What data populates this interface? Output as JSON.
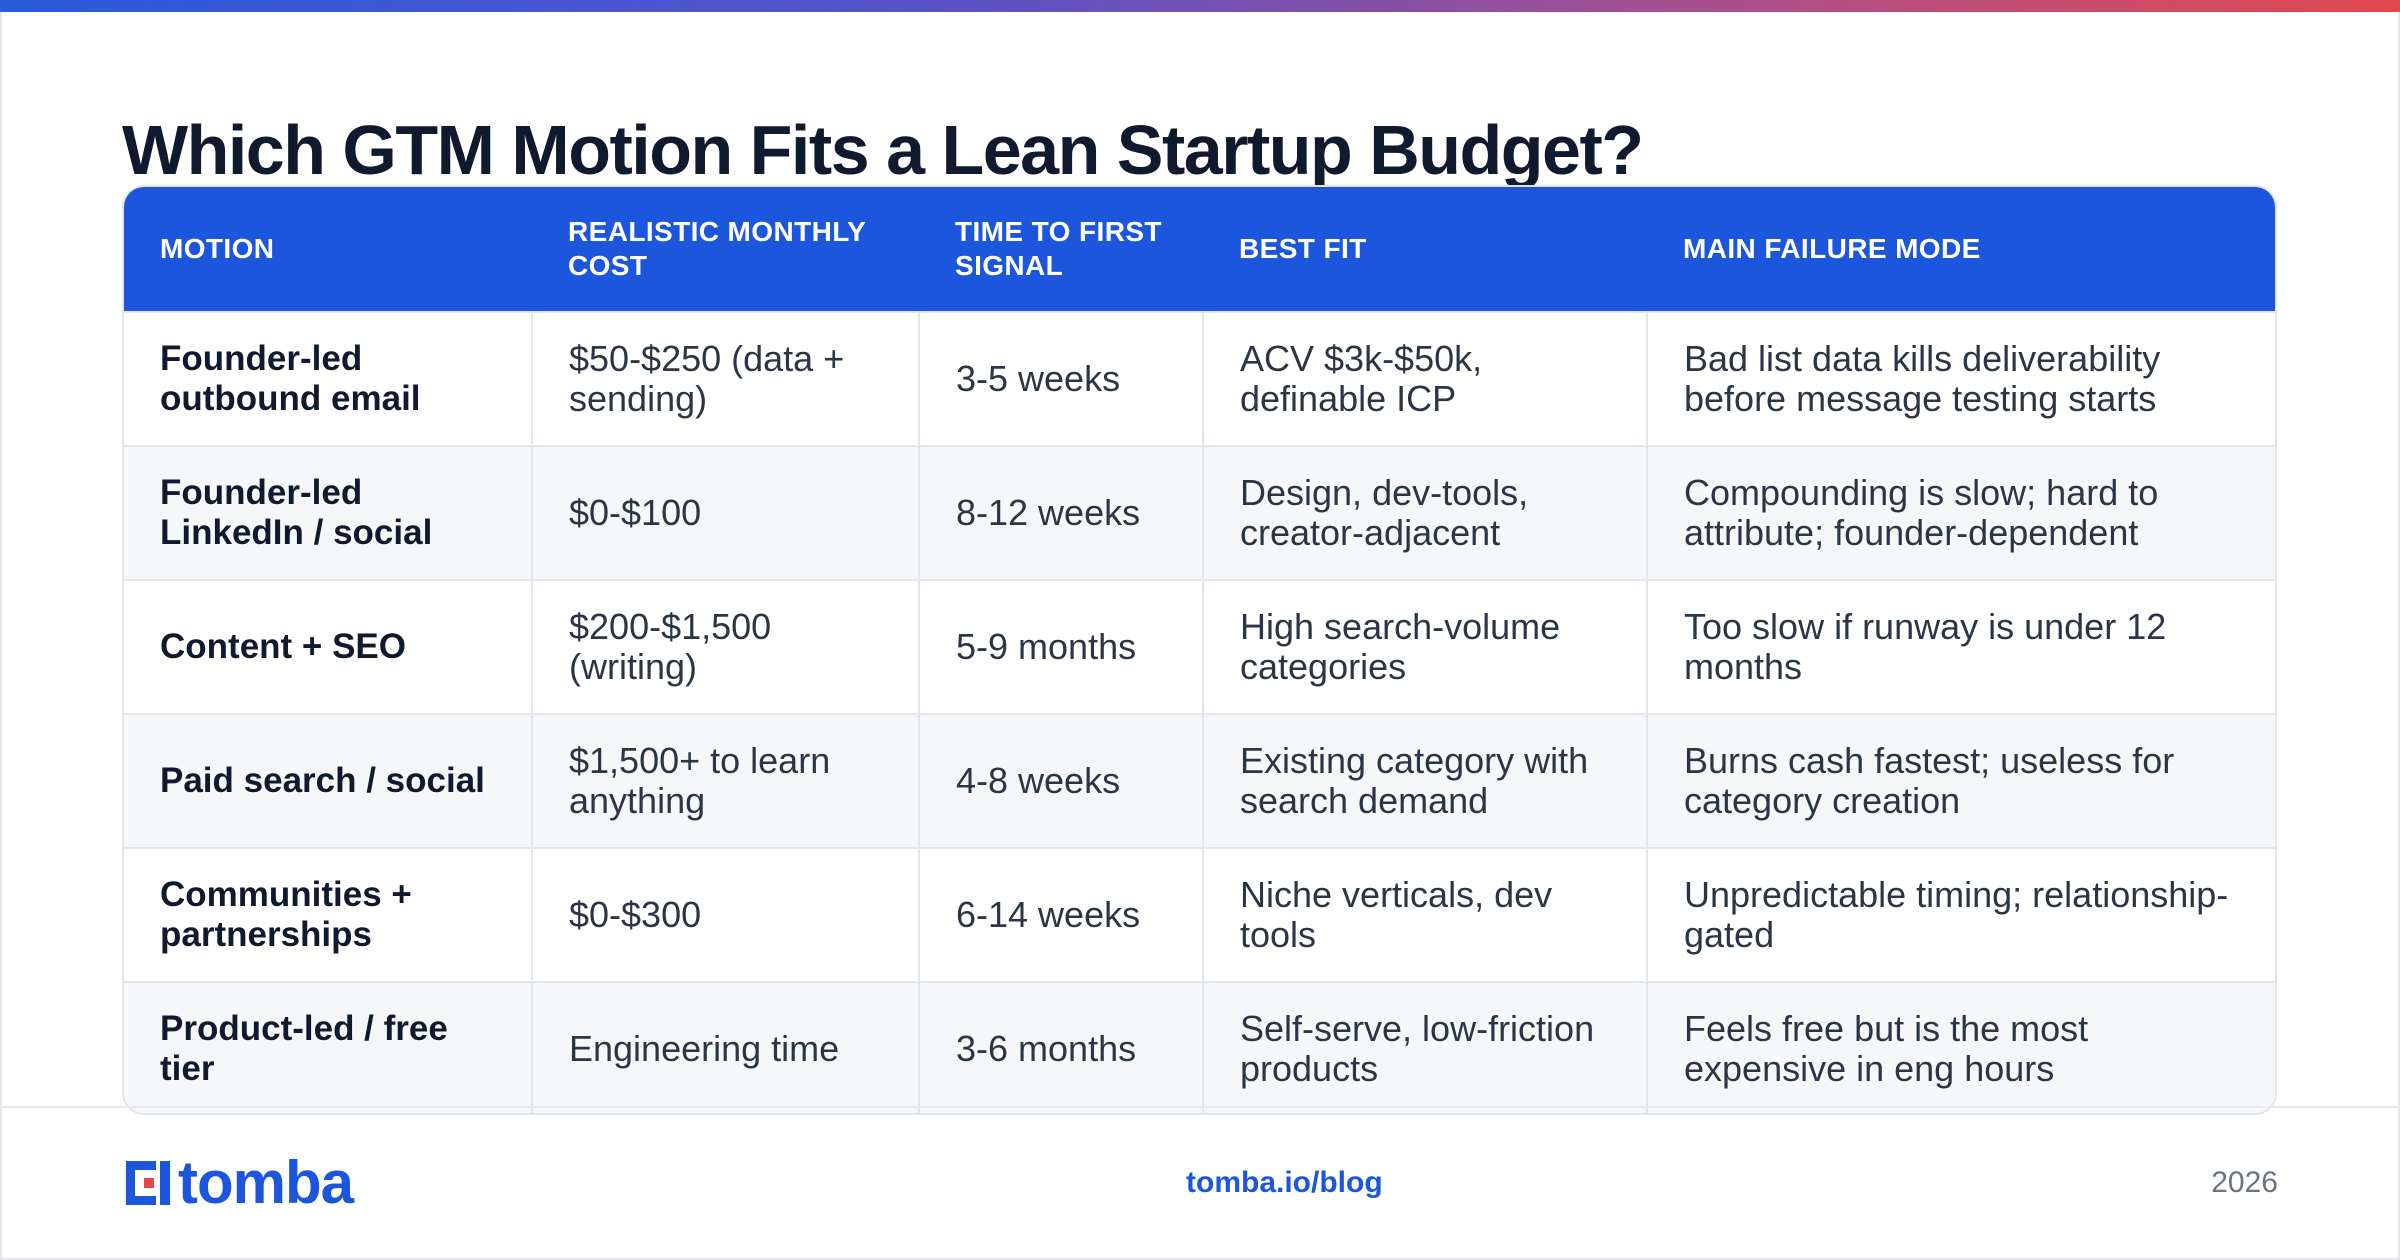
{
  "title": "Which GTM Motion Fits a Lean Startup Budget?",
  "colors": {
    "accent": "#1b56dc",
    "logo_red": "#e0484d",
    "header_bg": "#1b56dc"
  },
  "table": {
    "headers": [
      "MOTION",
      "REALISTIC MONTHLY COST",
      "TIME TO FIRST SIGNAL",
      "BEST FIT",
      "MAIN FAILURE MODE"
    ],
    "rows": [
      [
        "Founder-led outbound email",
        "$50-$250 (data + sending)",
        "3-5 weeks",
        "ACV $3k-$50k, definable ICP",
        "Bad list data kills deliverability before message testing starts"
      ],
      [
        "Founder-led LinkedIn / social",
        "$0-$100",
        "8-12 weeks",
        "Design, dev-tools, creator-adjacent",
        "Compounding is slow; hard to attribute; founder-dependent"
      ],
      [
        "Content + SEO",
        "$200-$1,500 (writing)",
        "5-9 months",
        "High search-volume categories",
        "Too slow if runway is under 12 months"
      ],
      [
        "Paid search / social",
        "$1,500+ to learn anything",
        "4-8 weeks",
        "Existing category with search demand",
        "Burns cash fastest; useless for category creation"
      ],
      [
        "Communities + partnerships",
        "$0-$300",
        "6-14 weeks",
        "Niche verticals, dev tools",
        "Unpredictable timing; relationship-gated"
      ],
      [
        "Product-led / free tier",
        "Engineering time",
        "3-6 months",
        "Self-serve, low-friction products",
        "Feels free but is the most expensive in eng hours"
      ]
    ]
  },
  "footer": {
    "logo_icon": "tomba-logo-icon",
    "logo_text": "tomba",
    "url": "tomba.io/blog",
    "year": "2026"
  }
}
